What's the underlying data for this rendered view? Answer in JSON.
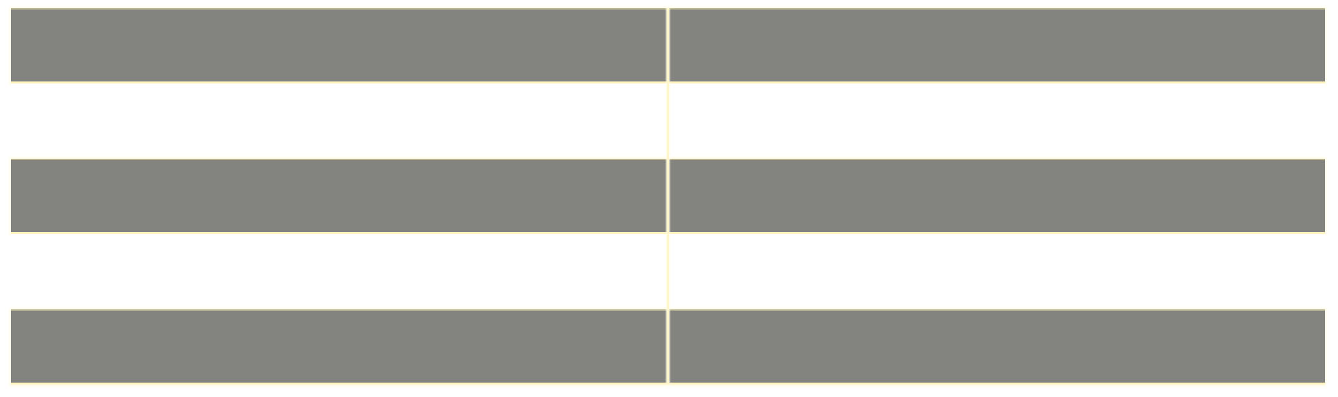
{
  "table": {
    "columns": 2,
    "rows": [
      {
        "cells": [
          "",
          ""
        ],
        "shaded": true
      },
      {
        "cells": [
          "",
          ""
        ],
        "shaded": false
      },
      {
        "cells": [
          "",
          ""
        ],
        "shaded": true
      },
      {
        "cells": [
          "",
          ""
        ],
        "shaded": false
      },
      {
        "cells": [
          "",
          ""
        ],
        "shaded": true
      }
    ]
  },
  "colors": {
    "shaded_row": "#838380",
    "plain_row": "#ffffff",
    "grid_line": "#fff4c2"
  }
}
